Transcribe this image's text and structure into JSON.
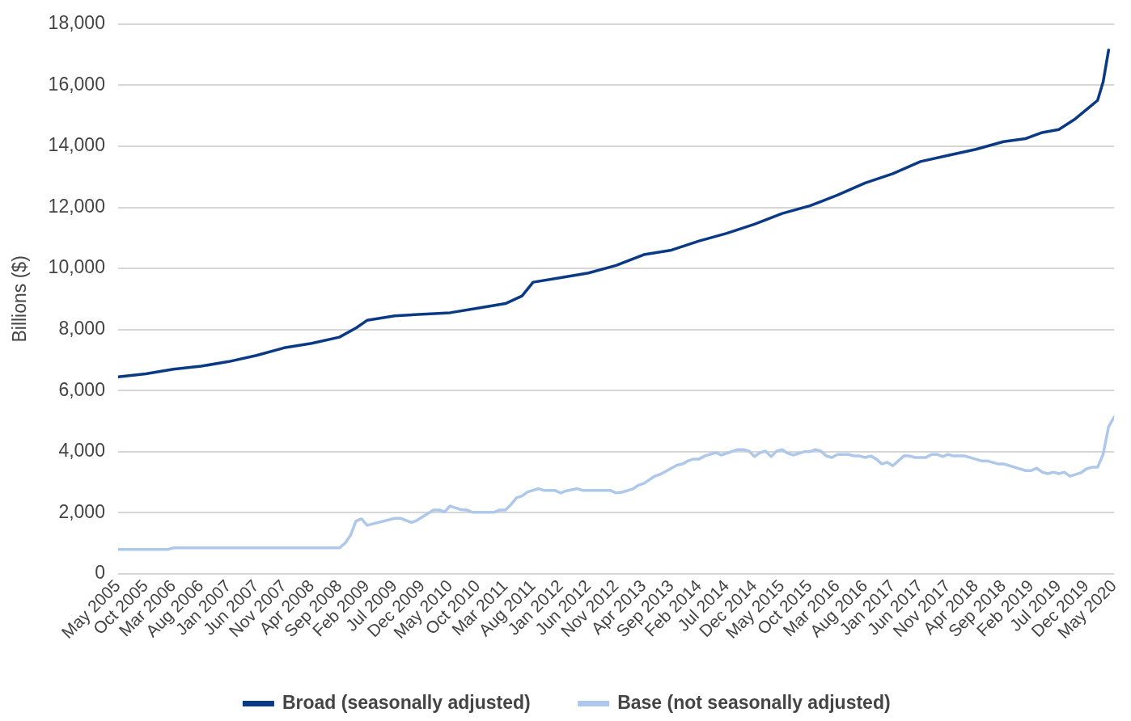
{
  "chart_data": {
    "type": "line",
    "ylabel": "Billions ($)",
    "xlim": [
      "2005-05",
      "2020-05"
    ],
    "xticks": [
      {
        "value": "2005-05",
        "label": "May 2005"
      },
      {
        "value": "2005-10",
        "label": "Oct 2005"
      },
      {
        "value": "2006-03",
        "label": "Mar 2006"
      },
      {
        "value": "2006-08",
        "label": "Aug 2006"
      },
      {
        "value": "2007-01",
        "label": "Jan 2007"
      },
      {
        "value": "2007-06",
        "label": "Jun 2007"
      },
      {
        "value": "2007-11",
        "label": "Nov 2007"
      },
      {
        "value": "2008-04",
        "label": "Apr 2008"
      },
      {
        "value": "2008-09",
        "label": "Sep 2008"
      },
      {
        "value": "2009-02",
        "label": "Feb 2009"
      },
      {
        "value": "2009-07",
        "label": "Jul 2009"
      },
      {
        "value": "2009-12",
        "label": "Dec 2009"
      },
      {
        "value": "2010-05",
        "label": "May 2010"
      },
      {
        "value": "2010-10",
        "label": "Oct 2010"
      },
      {
        "value": "2011-03",
        "label": "Mar 2011"
      },
      {
        "value": "2011-08",
        "label": "Aug 2011"
      },
      {
        "value": "2012-01",
        "label": "Jan 2012"
      },
      {
        "value": "2012-06",
        "label": "Jun 2012"
      },
      {
        "value": "2012-11",
        "label": "Nov 2012"
      },
      {
        "value": "2013-04",
        "label": "Apr 2013"
      },
      {
        "value": "2013-09",
        "label": "Sep 2013"
      },
      {
        "value": "2014-02",
        "label": "Feb 2014"
      },
      {
        "value": "2014-07",
        "label": "Jul 2014"
      },
      {
        "value": "2014-12",
        "label": "Dec 2014"
      },
      {
        "value": "2015-05",
        "label": "May 2015"
      },
      {
        "value": "2015-10",
        "label": "Oct 2015"
      },
      {
        "value": "2016-03",
        "label": "Mar 2016"
      },
      {
        "value": "2016-08",
        "label": "Aug 2016"
      },
      {
        "value": "2017-01",
        "label": "Jan 2017"
      },
      {
        "value": "2017-06",
        "label": "Jun 2017"
      },
      {
        "value": "2017-11",
        "label": "Nov 2017"
      },
      {
        "value": "2018-04",
        "label": "Apr 2018"
      },
      {
        "value": "2018-09",
        "label": "Sep 2018"
      },
      {
        "value": "2019-02",
        "label": "Feb 2019"
      },
      {
        "value": "2019-07",
        "label": "Jul 2019"
      },
      {
        "value": "2019-12",
        "label": "Dec 2019"
      },
      {
        "value": "2020-05",
        "label": "May 2020"
      }
    ],
    "ylim": [
      0,
      18000
    ],
    "yticks": [
      0,
      {
        "value": 2000,
        "label": "2,000"
      },
      {
        "value": 4000,
        "label": "4,000"
      },
      {
        "value": 6000,
        "label": "6,000"
      },
      {
        "value": 8000,
        "label": "8,000"
      },
      {
        "value": 10000,
        "label": "10,000"
      },
      {
        "value": 12000,
        "label": "12,000"
      },
      {
        "value": 14000,
        "label": "14,000"
      },
      {
        "value": 16000,
        "label": "16,000"
      },
      {
        "value": 18000,
        "label": "18,000"
      }
    ],
    "grid": "y",
    "legend": "bottom",
    "marker": "none",
    "line_style": "solid",
    "series": [
      {
        "name": "Broad (seasonally adjusted)",
        "color": "#0b3a84",
        "x": [
          "2005-05",
          "2005-10",
          "2006-03",
          "2006-08",
          "2007-01",
          "2007-06",
          "2007-11",
          "2008-04",
          "2008-09",
          "2008-12",
          "2009-02",
          "2009-07",
          "2009-12",
          "2010-05",
          "2010-10",
          "2011-03",
          "2011-06",
          "2011-08",
          "2012-01",
          "2012-06",
          "2012-11",
          "2013-04",
          "2013-09",
          "2014-02",
          "2014-07",
          "2014-12",
          "2015-05",
          "2015-10",
          "2016-03",
          "2016-08",
          "2017-01",
          "2017-06",
          "2017-11",
          "2018-04",
          "2018-09",
          "2019-01",
          "2019-04",
          "2019-07",
          "2019-10",
          "2020-01",
          "2020-02",
          "2020-03",
          "2020-04"
        ],
        "values": [
          6450,
          6550,
          6700,
          6800,
          6950,
          7150,
          7400,
          7550,
          7750,
          8050,
          8300,
          8450,
          8500,
          8550,
          8700,
          8850,
          9100,
          9550,
          9700,
          9850,
          10100,
          10450,
          10600,
          10900,
          11150,
          11450,
          11800,
          12050,
          12400,
          12800,
          13100,
          13500,
          13700,
          13900,
          14150,
          14250,
          14450,
          14550,
          14900,
          15350,
          15500,
          16100,
          17150
        ]
      },
      {
        "name": "Base (not seasonally adjusted)",
        "color": "#aec8eb",
        "x": [
          "2005-05",
          "2006-02",
          "2006-03",
          "2008-09",
          "2008-10",
          "2008-11",
          "2008-12",
          "2009-01",
          "2009-02",
          "2009-07",
          "2009-08",
          "2009-10",
          "2009-11",
          "2010-02",
          "2010-03",
          "2010-04",
          "2010-05",
          "2010-06",
          "2010-07",
          "2010-08",
          "2010-09",
          "2011-01",
          "2011-02",
          "2011-03",
          "2011-04",
          "2011-05",
          "2011-06",
          "2011-07",
          "2011-09",
          "2011-10",
          "2011-12",
          "2012-01",
          "2012-02",
          "2012-04",
          "2012-05",
          "2012-10",
          "2012-11",
          "2012-12",
          "2013-02",
          "2013-03",
          "2013-04",
          "2013-06",
          "2013-07",
          "2013-10",
          "2013-11",
          "2013-12",
          "2014-01",
          "2014-02",
          "2014-03",
          "2014-05",
          "2014-06",
          "2014-09",
          "2014-10",
          "2014-11",
          "2014-12",
          "2015-01",
          "2015-02",
          "2015-03",
          "2015-04",
          "2015-05",
          "2015-06",
          "2015-07",
          "2015-09",
          "2015-10",
          "2015-11",
          "2015-12",
          "2016-01",
          "2016-02",
          "2016-03",
          "2016-05",
          "2016-06",
          "2016-07",
          "2016-08",
          "2016-09",
          "2016-10",
          "2016-11",
          "2016-12",
          "2017-01",
          "2017-03",
          "2017-04",
          "2017-05",
          "2017-07",
          "2017-08",
          "2017-09",
          "2017-10",
          "2017-11",
          "2017-12",
          "2018-02",
          "2018-05",
          "2018-06",
          "2018-08",
          "2018-09",
          "2019-01",
          "2019-02",
          "2019-03",
          "2019-04",
          "2019-05",
          "2019-06",
          "2019-07",
          "2019-08",
          "2019-09",
          "2019-11",
          "2019-12",
          "2020-01",
          "2020-02",
          "2020-03",
          "2020-04",
          "2020-05"
        ],
        "values": [
          800,
          800,
          850,
          850,
          1000,
          1260,
          1730,
          1800,
          1590,
          1820,
          1820,
          1680,
          1750,
          2090,
          2090,
          2030,
          2220,
          2160,
          2100,
          2090,
          2020,
          2020,
          2090,
          2090,
          2270,
          2490,
          2550,
          2680,
          2790,
          2730,
          2730,
          2650,
          2720,
          2790,
          2730,
          2730,
          2650,
          2670,
          2780,
          2900,
          2960,
          3200,
          3260,
          3560,
          3600,
          3700,
          3760,
          3760,
          3860,
          3970,
          3890,
          4070,
          4070,
          4020,
          3840,
          3970,
          4020,
          3840,
          4020,
          4070,
          3950,
          3890,
          4000,
          4000,
          4070,
          4020,
          3860,
          3810,
          3910,
          3910,
          3860,
          3860,
          3810,
          3860,
          3760,
          3600,
          3650,
          3540,
          3860,
          3860,
          3810,
          3810,
          3910,
          3910,
          3840,
          3910,
          3860,
          3860,
          3700,
          3700,
          3600,
          3600,
          3380,
          3380,
          3460,
          3330,
          3280,
          3330,
          3280,
          3330,
          3200,
          3310,
          3440,
          3490,
          3490,
          3910,
          4820,
          5140
        ]
      }
    ]
  }
}
